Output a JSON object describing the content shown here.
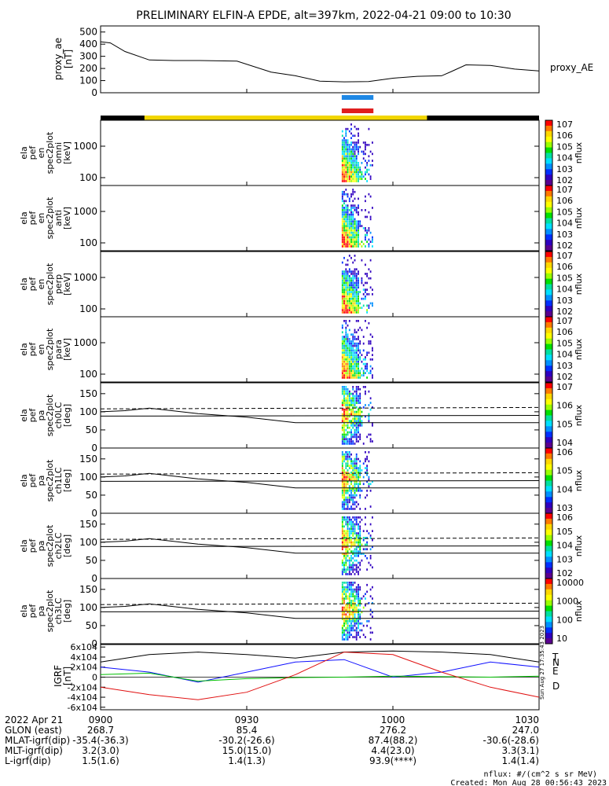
{
  "title": "PRELIMINARY ELFIN-A EPDE, alt=397km, 2022-04-21 09:00 to 10:30",
  "colors": {
    "bar_blue": "#1e88e5",
    "bar_red": "#e01e1e",
    "bar_yellow": "#f2d600",
    "trace_N": "#1010ff",
    "trace_E": "#00c000",
    "trace_D": "#e01010"
  },
  "colorbar_palette": [
    "#ff0000",
    "#ff7a00",
    "#ffd700",
    "#ffff00",
    "#9bff00",
    "#00e000",
    "#00e0a0",
    "#00e0ff",
    "#0090ff",
    "#0030ff",
    "#3000c0",
    "#5a0090",
    "#ffffff"
  ],
  "chart_data": [
    {
      "id": "proxy_ae",
      "type": "line",
      "ylabel": "proxy_ae\n[nT]",
      "yticks": [
        "0",
        "100",
        "200",
        "300",
        "400",
        "500"
      ],
      "ylim": [
        0,
        550
      ],
      "legend": "proxy_AE",
      "x": [
        0,
        2,
        5,
        10,
        15,
        20,
        28,
        35,
        40,
        45,
        50,
        55,
        60,
        65,
        70,
        72,
        75,
        80,
        85,
        90
      ],
      "y": [
        420,
        410,
        340,
        270,
        265,
        265,
        260,
        170,
        140,
        95,
        90,
        92,
        120,
        135,
        140,
        175,
        230,
        225,
        195,
        180
      ]
    },
    {
      "id": "ela_pef_en_spec2plot_omni",
      "type": "heatmap",
      "ylabel": "ela\npef\nen\nspec2plot\nomni\n[keV]",
      "yticks": [
        "100",
        "1000"
      ],
      "cbar_label": "nflux",
      "cbar_ticks": [
        "10^2",
        "10^3",
        "10^4",
        "10^5",
        "10^6",
        "10^7"
      ]
    },
    {
      "id": "ela_pef_en_spec2plot_anti",
      "type": "heatmap",
      "ylabel": "ela\npef\nen\nspec2plot\nanti\n[keV]",
      "yticks": [
        "100",
        "1000"
      ],
      "cbar_label": "nflux",
      "cbar_ticks": [
        "10^2",
        "10^3",
        "10^4",
        "10^5",
        "10^6",
        "10^7"
      ]
    },
    {
      "id": "ela_pef_en_spec2plot_perp",
      "type": "heatmap",
      "ylabel": "ela\npef\nen\nspec2plot\nperp\n[keV]",
      "yticks": [
        "100",
        "1000"
      ],
      "cbar_label": "nflux",
      "cbar_ticks": [
        "10^2",
        "10^3",
        "10^4",
        "10^5",
        "10^6",
        "10^7"
      ]
    },
    {
      "id": "ela_pef_en_spec2plot_para",
      "type": "heatmap",
      "ylabel": "ela\npef\nen\nspec2plot\npara\n[keV]",
      "yticks": [
        "100",
        "1000"
      ],
      "cbar_label": "nflux",
      "cbar_ticks": [
        "10^2",
        "10^3",
        "10^4",
        "10^5",
        "10^6",
        "10^7"
      ]
    },
    {
      "id": "ela_pef_pa_spec2plot_ch0LC",
      "type": "heatmap",
      "ylabel": "ela\npef\npa\nspec2plot\nch0LC\n[deg]",
      "yticks": [
        "0",
        "50",
        "100",
        "150"
      ],
      "cbar_label": "nflux",
      "cbar_ticks": [
        "10^4",
        "10^5",
        "10^6",
        "10^7"
      ]
    },
    {
      "id": "ela_pef_pa_spec2plot_ch1LC",
      "type": "heatmap",
      "ylabel": "ela\npef\npa\nspec2plot\nch1LC\n[deg]",
      "yticks": [
        "0",
        "50",
        "100",
        "150"
      ],
      "cbar_label": "nflux",
      "cbar_ticks": [
        "10^3",
        "10^4",
        "10^5",
        "10^6"
      ]
    },
    {
      "id": "ela_pef_pa_spec2plot_ch2LC",
      "type": "heatmap",
      "ylabel": "ela\npef\npa\nspec2plot\nch2LC\n[deg]",
      "yticks": [
        "0",
        "50",
        "100",
        "150"
      ],
      "cbar_label": "nflux",
      "cbar_ticks": [
        "10^2",
        "10^3",
        "10^4",
        "10^5",
        "10^6"
      ]
    },
    {
      "id": "ela_pef_pa_spec2plot_ch3LC",
      "type": "heatmap",
      "ylabel": "ela\npef\npa\nspec2plot\nch3LC\n[deg]",
      "yticks": [
        "0",
        "50",
        "100",
        "150"
      ],
      "cbar_label": "nflux",
      "cbar_ticks": [
        "10",
        "100",
        "1000",
        "10000"
      ]
    },
    {
      "id": "IGRF",
      "type": "line",
      "ylabel": "IGRF\n[nT]",
      "yticks": [
        "-6x10^4",
        "-4x10^4",
        "-2x10^4",
        "0",
        "2x10^4",
        "4x10^4",
        "6x10^4"
      ],
      "ylim": [
        -65000,
        65000
      ],
      "x": [
        0,
        10,
        20,
        30,
        40,
        50,
        60,
        70,
        80,
        90
      ],
      "series": [
        {
          "name": "T",
          "color": "#000000",
          "values": [
            30000,
            45000,
            50000,
            45000,
            38000,
            50000,
            52000,
            50000,
            45000,
            30000
          ]
        },
        {
          "name": "N",
          "color": "#1010ff",
          "values": [
            20000,
            10000,
            -10000,
            10000,
            30000,
            35000,
            0,
            10000,
            30000,
            20000
          ]
        },
        {
          "name": "E",
          "color": "#00c000",
          "values": [
            5000,
            8000,
            -8000,
            -3000,
            -1000,
            0,
            2000,
            1000,
            0,
            2000
          ]
        },
        {
          "name": "D",
          "color": "#e01010",
          "values": [
            -20000,
            -35000,
            -45000,
            -30000,
            5000,
            50000,
            45000,
            10000,
            -20000,
            -40000
          ]
        }
      ]
    }
  ],
  "xaxis": {
    "labels": [
      "2022 Apr 21",
      "GLON (east)",
      "MLAT-igrf(dip)",
      "MLT-igrf(dip)",
      "L-igrf(dip)"
    ],
    "columns": [
      [
        "0900",
        "268.7",
        "-35.4(-36.3)",
        "3.2(3.0)",
        "1.5(1.6)"
      ],
      [
        "0930",
        "85.4",
        "-30.2(-26.6)",
        "15.0(15.0)",
        "1.4(1.3)"
      ],
      [
        "1000",
        "276.2",
        "87.4(88.2)",
        "4.4(23.0)",
        "93.9(****)"
      ],
      [
        "1030",
        "247.0",
        "-30.6(-28.6)",
        "3.3(3.1)",
        "1.4(1.4)"
      ]
    ]
  },
  "footer": {
    "units": "nflux: #/(cm^2 s sr MeV)",
    "created": "Created: Mon Aug 28 00:56:43 2023",
    "side_stamp": "Sun Aug 27 17:35:43 2023"
  }
}
